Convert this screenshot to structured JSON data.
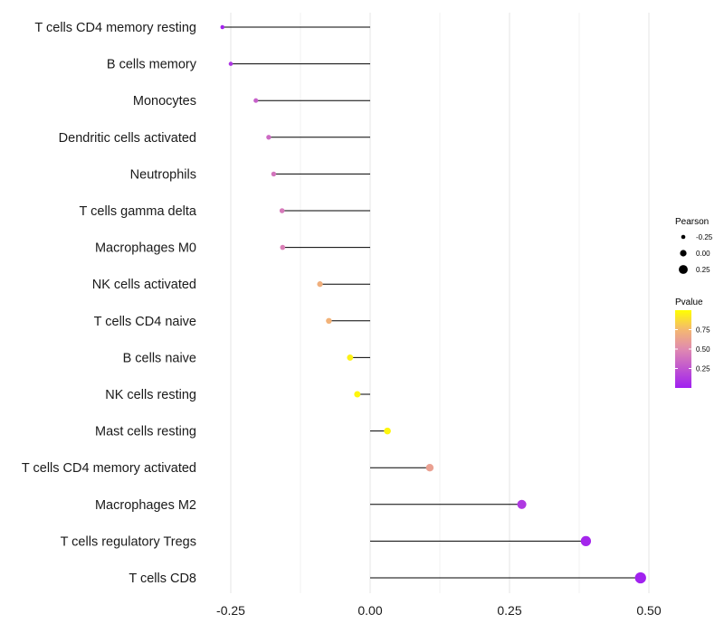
{
  "chart_data": {
    "type": "lollipop",
    "title": "",
    "xlabel": "",
    "ylabel": "",
    "xlim": [
      -0.27,
      0.5
    ],
    "xticks": [
      -0.25,
      0.0,
      0.25,
      0.5
    ],
    "xtick_labels": [
      "-0.25",
      "0.00",
      "0.25",
      "0.50"
    ],
    "baseline": 0.0,
    "grid": "vertical",
    "categories": [
      "T cells CD4 memory resting",
      "B cells memory",
      "Monocytes",
      "Dendritic cells activated",
      "Neutrophils",
      "T cells gamma delta",
      "Macrophages M0",
      "NK cells activated",
      "T cells CD4 naive",
      "B cells naive",
      "NK cells resting",
      "Mast cells resting",
      "T cells CD4 memory activated",
      "Macrophages M2",
      "T cells regulatory  Tregs",
      "T cells CD8"
    ],
    "pearson": [
      -0.265,
      -0.25,
      -0.205,
      -0.182,
      -0.173,
      -0.158,
      -0.157,
      -0.09,
      -0.074,
      -0.036,
      -0.023,
      0.031,
      0.107,
      0.272,
      0.387,
      0.485
    ],
    "pvalue": [
      0.02,
      0.1,
      0.3,
      0.35,
      0.4,
      0.42,
      0.45,
      0.7,
      0.72,
      0.95,
      0.97,
      0.97,
      0.62,
      0.12,
      0.03,
      0.01
    ],
    "legend_size": {
      "title": "Pearson",
      "labels": [
        "-0.25",
        "0.00",
        "0.25"
      ],
      "values": [
        -0.25,
        0.0,
        0.25
      ]
    },
    "legend_color": {
      "title": "Pvalue",
      "labels": [
        "0.75",
        "0.50",
        "0.25"
      ],
      "values": [
        0.75,
        0.5,
        0.25
      ],
      "range": [
        0.0,
        1.0
      ],
      "color_low": "#a020f0",
      "color_mid": "#f4a582",
      "color_high": "#ffff00"
    },
    "legend_position": "right"
  }
}
